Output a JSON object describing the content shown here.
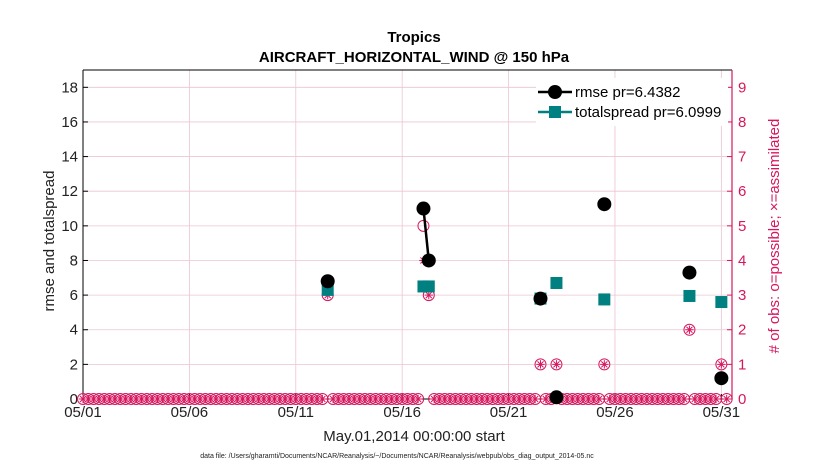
{
  "chart_data": {
    "type": "line",
    "title": "Tropics",
    "subtitle": "AIRCRAFT_HORIZONTAL_WIND @ 150 hPa",
    "xlabel": "May.01,2014 00:00:00 start",
    "ylabel": "rmse and totalspread",
    "y2label": "# of obs: o=possible; ×=assimilated",
    "footnote": "data file: /Users/gharamti/Documents/NCAR/Reanalysis/~/Documents/NCAR/Reanalysis/webpub/obs_diag_output_2014-05.nc",
    "xlim": [
      1,
      31.5
    ],
    "ylim": [
      0,
      19
    ],
    "y2lim": [
      0,
      9.5
    ],
    "xticks": [
      1,
      6,
      11,
      16,
      21,
      26,
      31
    ],
    "xtick_labels": [
      "05/01",
      "05/06",
      "05/11",
      "05/16",
      "05/21",
      "05/26",
      "05/31"
    ],
    "yticks": [
      0,
      2,
      4,
      6,
      8,
      10,
      12,
      14,
      16,
      18
    ],
    "ytick_labels": [
      "0",
      "2",
      "4",
      "6",
      "8",
      "10",
      "12",
      "14",
      "16",
      "18"
    ],
    "y2ticks": [
      0,
      1,
      2,
      3,
      4,
      5,
      6,
      7,
      8,
      9
    ],
    "y2tick_labels": [
      "0",
      "1",
      "2",
      "3",
      "4",
      "5",
      "6",
      "7",
      "8",
      "9"
    ],
    "grid": true,
    "legend_position": "top-right",
    "colors": {
      "rmse": "#000000",
      "totalspread": "#008080",
      "obs": "#d6175e",
      "grid": "#ecc4d3"
    },
    "series": [
      {
        "name": "rmse",
        "legend": "rmse pr=6.4382",
        "points": [
          [
            12.5,
            6.8
          ],
          [
            17.0,
            11.0
          ],
          [
            17.25,
            8.0
          ],
          [
            22.5,
            5.8
          ],
          [
            23.25,
            0.1
          ],
          [
            25.5,
            11.25
          ],
          [
            29.5,
            7.3
          ],
          [
            31.0,
            1.2
          ]
        ],
        "connected": [
          [
            1,
            2
          ]
        ]
      },
      {
        "name": "totalspread",
        "legend": "totalspread pr=6.0999",
        "points": [
          [
            12.5,
            6.3
          ],
          [
            17.0,
            6.5
          ],
          [
            17.25,
            6.5
          ],
          [
            22.5,
            5.8
          ],
          [
            23.25,
            6.7
          ],
          [
            25.5,
            5.75
          ],
          [
            29.5,
            5.95
          ],
          [
            31.0,
            5.6
          ]
        ],
        "connected": [
          [
            1,
            2
          ]
        ]
      }
    ],
    "obs_possible": [
      [
        12.5,
        3
      ],
      [
        17.0,
        5
      ],
      [
        17.25,
        3
      ],
      [
        22.5,
        1
      ],
      [
        23.25,
        1
      ],
      [
        25.5,
        1
      ],
      [
        29.5,
        2
      ],
      [
        31.0,
        1
      ]
    ],
    "obs_assimilated": [
      [
        12.5,
        3
      ],
      [
        17.0,
        4
      ],
      [
        17.25,
        3
      ],
      [
        22.5,
        1
      ],
      [
        23.25,
        1
      ],
      [
        25.5,
        1
      ],
      [
        29.5,
        2
      ],
      [
        31.0,
        1
      ]
    ],
    "zero_obs_step_days": 0.25
  }
}
